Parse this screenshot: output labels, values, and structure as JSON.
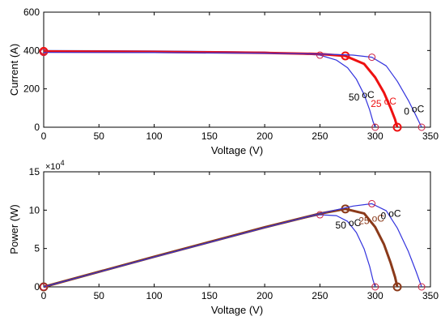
{
  "chart_data": [
    {
      "type": "line",
      "ylabel": "Current (A)",
      "xlabel": "Voltage (V)",
      "xlim": [
        0,
        350
      ],
      "ylim": [
        0,
        600
      ],
      "x_ticks": [
        0,
        50,
        100,
        150,
        200,
        250,
        300,
        350
      ],
      "y_ticks": [
        0,
        200,
        400,
        600
      ],
      "x_tick_labels": [
        "0",
        "50",
        "100",
        "150",
        "200",
        "250",
        "300",
        "350"
      ],
      "y_tick_labels": [
        "0",
        "200",
        "400",
        "600"
      ],
      "grid": false,
      "series": [
        {
          "name": "50 °C",
          "color": "#3333dd",
          "x": [
            0,
            100,
            200,
            250,
            265,
            275,
            283,
            290,
            295,
            298,
            300
          ],
          "y": [
            400,
            398,
            392,
            376,
            350,
            310,
            250,
            170,
            90,
            30,
            0
          ],
          "markers": [
            [
              0,
              400
            ],
            [
              250,
              376
            ],
            [
              300,
              0
            ]
          ]
        },
        {
          "name": "25 °C",
          "color": "#ee1111",
          "x": [
            0,
            100,
            200,
            250,
            273,
            290,
            300,
            308,
            314,
            318,
            320
          ],
          "y": [
            395,
            393,
            388,
            382,
            372,
            330,
            260,
            180,
            100,
            40,
            0
          ],
          "markers": [
            [
              0,
              395
            ],
            [
              273,
              372
            ],
            [
              320,
              0
            ]
          ]
        },
        {
          "name": "0 °C",
          "color": "#3333dd",
          "x": [
            0,
            100,
            200,
            250,
            280,
            297,
            310,
            320,
            330,
            337,
            342
          ],
          "y": [
            390,
            389,
            386,
            382,
            376,
            365,
            320,
            240,
            140,
            60,
            0
          ],
          "markers": [
            [
              0,
              390
            ],
            [
              297,
              365
            ],
            [
              342,
              0
            ]
          ]
        }
      ],
      "labels": [
        {
          "text": "50",
          "unit": "oC",
          "color": "#000000",
          "x": 276,
          "y": 140
        },
        {
          "text": "25",
          "unit": "oC",
          "color": "#ee1111",
          "x": 296,
          "y": 105
        },
        {
          "text": "0",
          "unit": "oC",
          "color": "#000000",
          "x": 326,
          "y": 65
        }
      ]
    },
    {
      "type": "line",
      "ylabel": "Power (W)",
      "xlabel": "Voltage (V)",
      "exponent_label": "×10",
      "exponent_power": "4",
      "xlim": [
        0,
        350
      ],
      "ylim": [
        0,
        15
      ],
      "x_ticks": [
        0,
        50,
        100,
        150,
        200,
        250,
        300,
        350
      ],
      "y_ticks": [
        0,
        5,
        10,
        15
      ],
      "x_tick_labels": [
        "0",
        "50",
        "100",
        "150",
        "200",
        "250",
        "300",
        "350"
      ],
      "y_tick_labels": [
        "0",
        "5",
        "10",
        "15"
      ],
      "grid": false,
      "series": [
        {
          "name": "50 °C",
          "color": "#3333dd",
          "x": [
            0,
            100,
            200,
            250,
            265,
            275,
            283,
            290,
            295,
            298,
            300
          ],
          "y": [
            0,
            3.98,
            7.84,
            9.4,
            9.28,
            8.53,
            7.08,
            4.93,
            2.66,
            0.89,
            0
          ],
          "markers": [
            [
              0,
              0
            ],
            [
              250,
              9.4
            ],
            [
              300,
              0
            ]
          ]
        },
        {
          "name": "25 °C",
          "color": "#8b3a1a",
          "x": [
            0,
            100,
            200,
            250,
            273,
            290,
            300,
            308,
            314,
            318,
            320
          ],
          "y": [
            0,
            3.93,
            7.76,
            9.55,
            10.16,
            9.57,
            7.8,
            5.54,
            3.14,
            1.27,
            0
          ],
          "markers": [
            [
              0,
              0
            ],
            [
              273,
              10.16
            ],
            [
              320,
              0
            ]
          ]
        },
        {
          "name": "0 °C",
          "color": "#3333dd",
          "x": [
            0,
            100,
            200,
            250,
            280,
            297,
            310,
            320,
            330,
            337,
            342
          ],
          "y": [
            0,
            3.89,
            7.72,
            9.55,
            10.53,
            10.84,
            9.92,
            7.68,
            4.62,
            2.02,
            0
          ],
          "markers": [
            [
              0,
              0
            ],
            [
              297,
              10.84
            ],
            [
              342,
              0
            ]
          ]
        }
      ],
      "labels": [
        {
          "text": "50",
          "unit": "oC",
          "color": "#000000",
          "x": 264,
          "y": 7.6
        },
        {
          "text": "25",
          "unit": "oC",
          "color": "#8b3a1a",
          "x": 285,
          "y": 8.2
        },
        {
          "text": "0",
          "unit": "oC",
          "color": "#000000",
          "x": 305,
          "y": 8.8
        }
      ]
    }
  ]
}
